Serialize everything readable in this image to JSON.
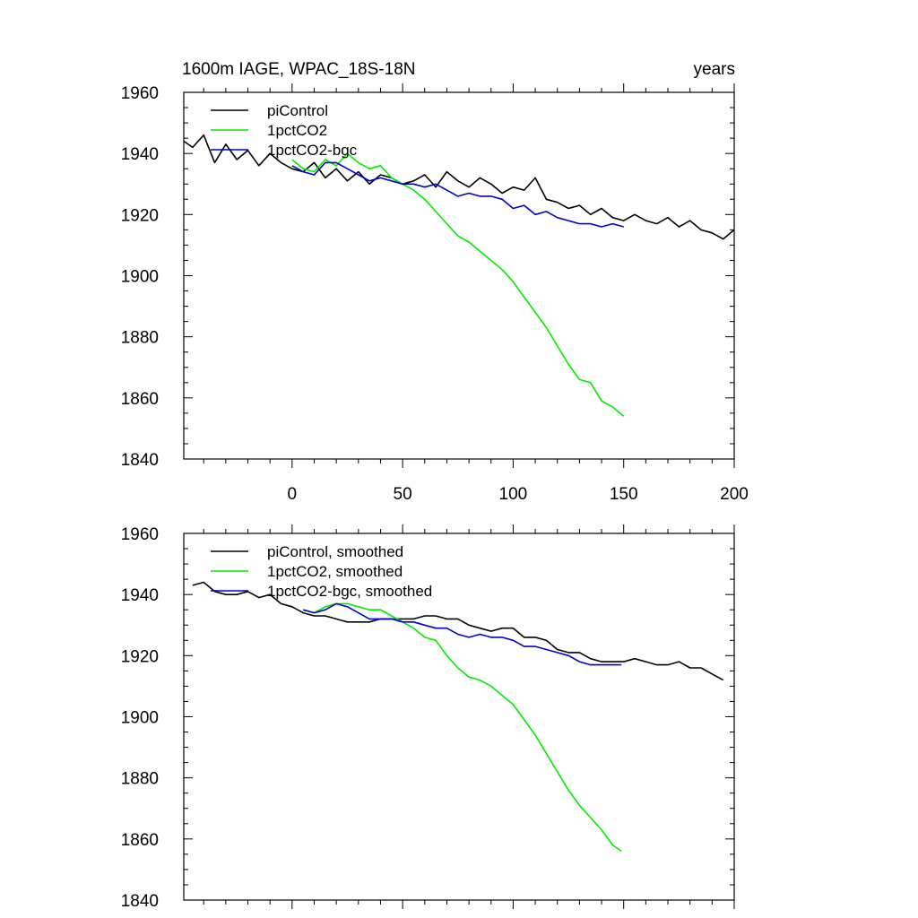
{
  "colors": {
    "piControl": "#000000",
    "1pctCO2": "#00ee00",
    "1pctCO2-bgc": "#0000cc"
  },
  "chart_data": [
    {
      "type": "line",
      "title": "1600m IAGE, WPAC_18S-18N",
      "title_right": "years",
      "xlabel": "",
      "ylabel": "",
      "xlim": [
        -49,
        200
      ],
      "ylim": [
        1840,
        1960
      ],
      "xticks": [
        0,
        50,
        100,
        150,
        200
      ],
      "xtick_labels": [
        "0",
        "50",
        "100",
        "150",
        "200"
      ],
      "yticks": [
        1840,
        1860,
        1880,
        1900,
        1920,
        1940,
        1960
      ],
      "ytick_labels": [
        "1840",
        "1860",
        "1880",
        "1900",
        "1920",
        "1940",
        "1960"
      ],
      "grid": false,
      "legend_position": "top-left",
      "series": [
        {
          "name": "piControl",
          "color": "#000000",
          "x": [
            -49,
            -45,
            -40,
            -35,
            -30,
            -25,
            -20,
            -15,
            -10,
            -5,
            0,
            5,
            10,
            15,
            20,
            25,
            30,
            35,
            40,
            45,
            50,
            55,
            60,
            65,
            70,
            75,
            80,
            85,
            90,
            95,
            100,
            105,
            110,
            115,
            120,
            125,
            130,
            135,
            140,
            145,
            150,
            155,
            160,
            165,
            170,
            175,
            180,
            185,
            190,
            195,
            200
          ],
          "y": [
            1944,
            1942,
            1946,
            1937,
            1943,
            1938,
            1941,
            1936,
            1940,
            1937,
            1935,
            1934,
            1937,
            1932,
            1935,
            1931,
            1934,
            1930,
            1933,
            1932,
            1930,
            1931,
            1933,
            1929,
            1934,
            1931,
            1929,
            1932,
            1930,
            1927,
            1929,
            1928,
            1932,
            1925,
            1924,
            1922,
            1923,
            1920,
            1922,
            1919,
            1918,
            1920,
            1918,
            1917,
            1919,
            1916,
            1918,
            1915,
            1914,
            1912,
            1915
          ]
        },
        {
          "name": "1pctCO2",
          "color": "#00ee00",
          "x": [
            0,
            5,
            10,
            15,
            20,
            25,
            30,
            35,
            40,
            45,
            50,
            55,
            60,
            65,
            70,
            75,
            80,
            85,
            90,
            95,
            100,
            105,
            110,
            115,
            120,
            125,
            130,
            135,
            140,
            145,
            150
          ],
          "y": [
            1938,
            1935,
            1934,
            1938,
            1936,
            1940,
            1937,
            1935,
            1936,
            1932,
            1930,
            1928,
            1925,
            1921,
            1917,
            1913,
            1911,
            1908,
            1905,
            1902,
            1898,
            1893,
            1888,
            1883,
            1877,
            1871,
            1866,
            1865,
            1859,
            1857,
            1854
          ]
        },
        {
          "name": "1pctCO2-bgc",
          "color": "#0000cc",
          "x": [
            0,
            5,
            10,
            15,
            20,
            25,
            30,
            35,
            40,
            45,
            50,
            55,
            60,
            65,
            70,
            75,
            80,
            85,
            90,
            95,
            100,
            105,
            110,
            115,
            120,
            125,
            130,
            135,
            140,
            145,
            150
          ],
          "y": [
            1936,
            1934,
            1933,
            1937,
            1937,
            1935,
            1933,
            1931,
            1932,
            1931,
            1930,
            1930,
            1929,
            1930,
            1928,
            1926,
            1927,
            1926,
            1926,
            1925,
            1922,
            1923,
            1920,
            1921,
            1919,
            1918,
            1917,
            1917,
            1916,
            1917,
            1916
          ]
        }
      ]
    },
    {
      "type": "line",
      "title": "",
      "xlabel": "",
      "ylabel": "",
      "xlim": [
        -49,
        200
      ],
      "ylim": [
        1840,
        1960
      ],
      "xticks": [
        0,
        50,
        100,
        150,
        200
      ],
      "xtick_labels": [],
      "yticks": [
        1840,
        1860,
        1880,
        1900,
        1920,
        1940,
        1960
      ],
      "ytick_labels": [
        "1840",
        "1860",
        "1880",
        "1900",
        "1920",
        "1940",
        "1960"
      ],
      "grid": false,
      "legend_position": "top-left",
      "series": [
        {
          "name": "piControl, smoothed",
          "color": "#000000",
          "x": [
            -45,
            -40,
            -35,
            -30,
            -25,
            -20,
            -15,
            -10,
            -5,
            0,
            5,
            10,
            15,
            20,
            25,
            30,
            35,
            40,
            45,
            50,
            55,
            60,
            65,
            70,
            75,
            80,
            85,
            90,
            95,
            100,
            105,
            110,
            115,
            120,
            125,
            130,
            135,
            140,
            145,
            150,
            155,
            160,
            165,
            170,
            175,
            180,
            185,
            190,
            195
          ],
          "y": [
            1943,
            1944,
            1941,
            1940,
            1940,
            1941,
            1939,
            1940,
            1937,
            1936,
            1934,
            1933,
            1933,
            1932,
            1931,
            1931,
            1931,
            1932,
            1932,
            1932,
            1932,
            1933,
            1933,
            1932,
            1932,
            1930,
            1929,
            1928,
            1929,
            1929,
            1926,
            1926,
            1925,
            1922,
            1921,
            1921,
            1919,
            1918,
            1918,
            1918,
            1919,
            1918,
            1917,
            1917,
            1918,
            1916,
            1916,
            1914,
            1912
          ]
        },
        {
          "name": "1pctCO2, smoothed",
          "color": "#00ee00",
          "x": [
            5,
            10,
            15,
            20,
            25,
            30,
            35,
            40,
            45,
            50,
            55,
            60,
            65,
            70,
            75,
            80,
            85,
            90,
            95,
            100,
            105,
            110,
            115,
            120,
            125,
            130,
            135,
            140,
            145,
            149
          ],
          "y": [
            1935,
            1934,
            1936,
            1937,
            1937,
            1936,
            1935,
            1935,
            1933,
            1931,
            1929,
            1926,
            1925,
            1920,
            1916,
            1913,
            1912,
            1910,
            1907,
            1904,
            1899,
            1894,
            1888,
            1882,
            1876,
            1871,
            1867,
            1863,
            1858,
            1856
          ]
        },
        {
          "name": "1pctCO2-bgc, smoothed",
          "color": "#0000cc",
          "x": [
            5,
            10,
            15,
            20,
            25,
            30,
            35,
            40,
            45,
            50,
            55,
            60,
            65,
            70,
            75,
            80,
            85,
            90,
            95,
            100,
            105,
            110,
            115,
            120,
            125,
            130,
            135,
            140,
            145,
            149
          ],
          "y": [
            1935,
            1934,
            1935,
            1937,
            1936,
            1934,
            1932,
            1932,
            1932,
            1931,
            1931,
            1930,
            1929,
            1929,
            1927,
            1926,
            1927,
            1926,
            1926,
            1925,
            1923,
            1923,
            1922,
            1921,
            1920,
            1918,
            1917,
            1917,
            1917,
            1917
          ]
        }
      ]
    }
  ]
}
